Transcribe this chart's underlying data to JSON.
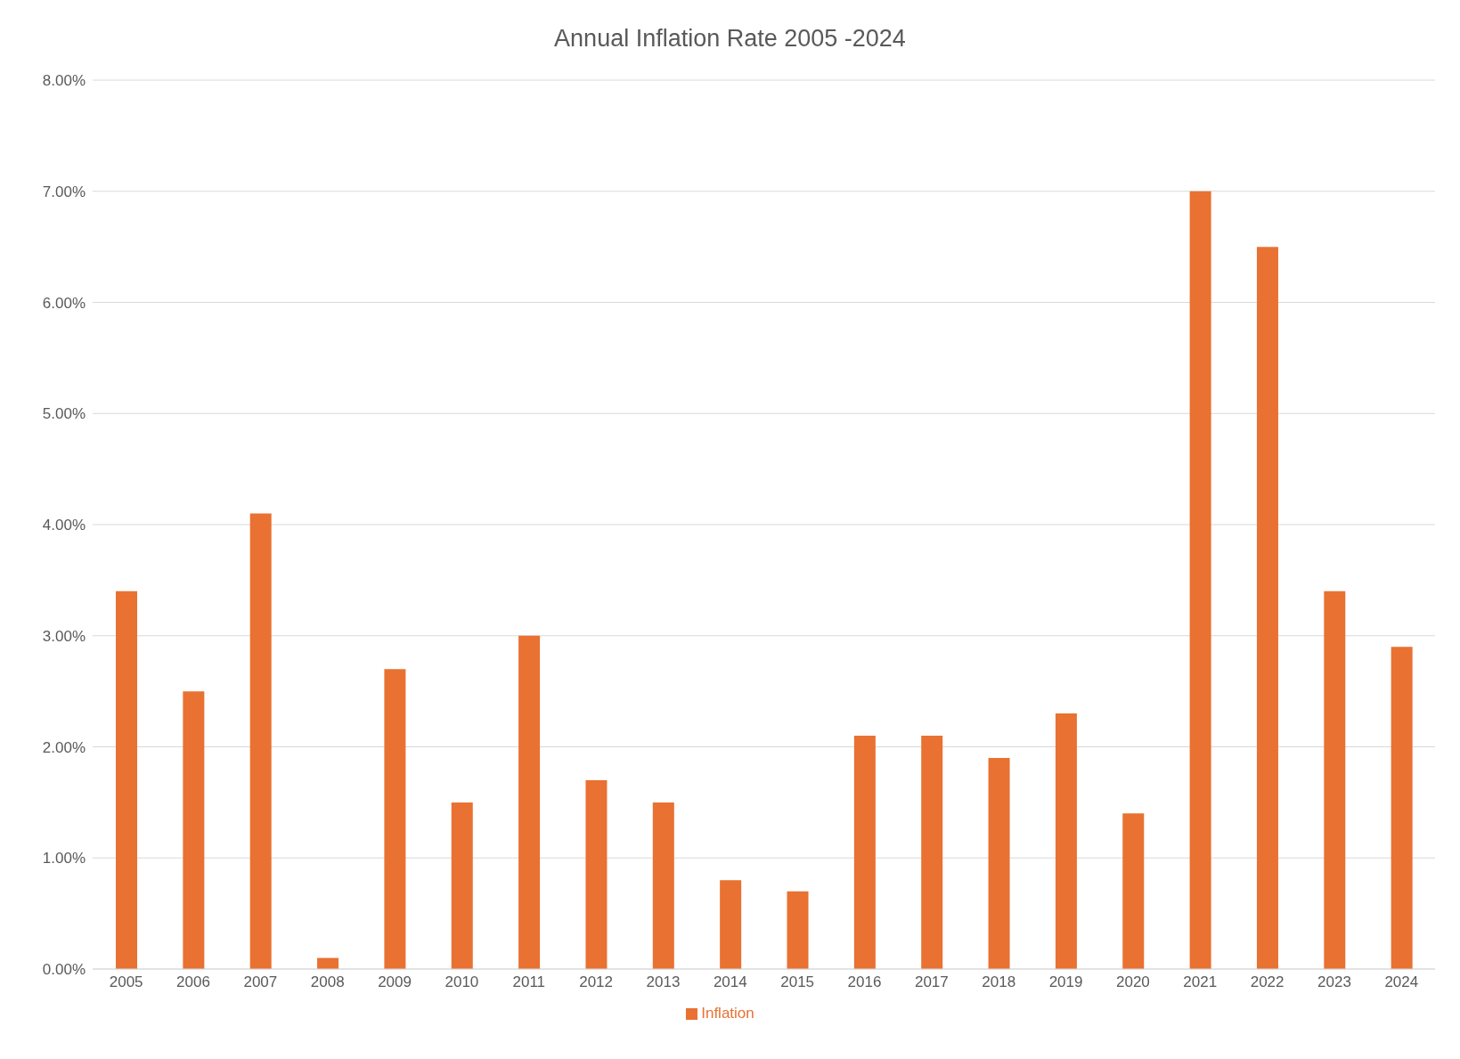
{
  "chart_data": {
    "type": "bar",
    "title": "Annual Inflation Rate 2005 -2024",
    "categories": [
      "2005",
      "2006",
      "2007",
      "2008",
      "2009",
      "2010",
      "2011",
      "2012",
      "2013",
      "2014",
      "2015",
      "2016",
      "2017",
      "2018",
      "2019",
      "2020",
      "2021",
      "2022",
      "2023",
      "2024"
    ],
    "series": [
      {
        "name": "Inflation",
        "color": "#e97132",
        "values": [
          3.4,
          2.5,
          4.1,
          0.1,
          2.7,
          1.5,
          3.0,
          1.7,
          1.5,
          0.8,
          0.7,
          2.1,
          2.1,
          1.9,
          2.3,
          1.4,
          7.0,
          6.5,
          3.4,
          2.9
        ]
      }
    ],
    "ylim": [
      0,
      8
    ],
    "yticks": [
      {
        "value": 0,
        "label": "0.00%"
      },
      {
        "value": 1,
        "label": "1.00%"
      },
      {
        "value": 2,
        "label": "2.00%"
      },
      {
        "value": 3,
        "label": "3.00%"
      },
      {
        "value": 4,
        "label": "4.00%"
      },
      {
        "value": 5,
        "label": "5.00%"
      },
      {
        "value": 6,
        "label": "6.00%"
      },
      {
        "value": 7,
        "label": "7.00%"
      },
      {
        "value": 8,
        "label": "8.00%"
      }
    ],
    "grid": "y",
    "legend": "bottom"
  }
}
